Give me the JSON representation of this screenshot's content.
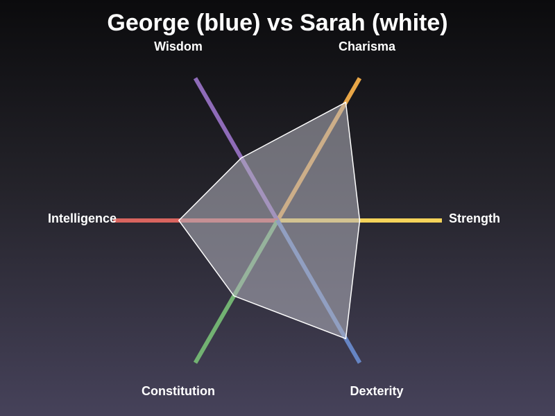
{
  "chart_data": {
    "type": "radar",
    "title": "George (blue) vs Sarah (white)",
    "axes": [
      {
        "name": "Strength",
        "color": "#f5d35a"
      },
      {
        "name": "Charisma",
        "color": "#e8a647"
      },
      {
        "name": "Wisdom",
        "color": "#8e6bb8"
      },
      {
        "name": "Intelligence",
        "color": "#d9645f"
      },
      {
        "name": "Constitution",
        "color": "#72b272"
      },
      {
        "name": "Dexterity",
        "color": "#6685c4"
      }
    ],
    "range": [
      0,
      1
    ],
    "series": [
      {
        "values": [
          0.5,
          0.83,
          0.44,
          0.6,
          0.53,
          0.83
        ],
        "fill": "#b5b5c0",
        "stroke": "#ffffff"
      }
    ],
    "grid": false,
    "legend": "none"
  }
}
